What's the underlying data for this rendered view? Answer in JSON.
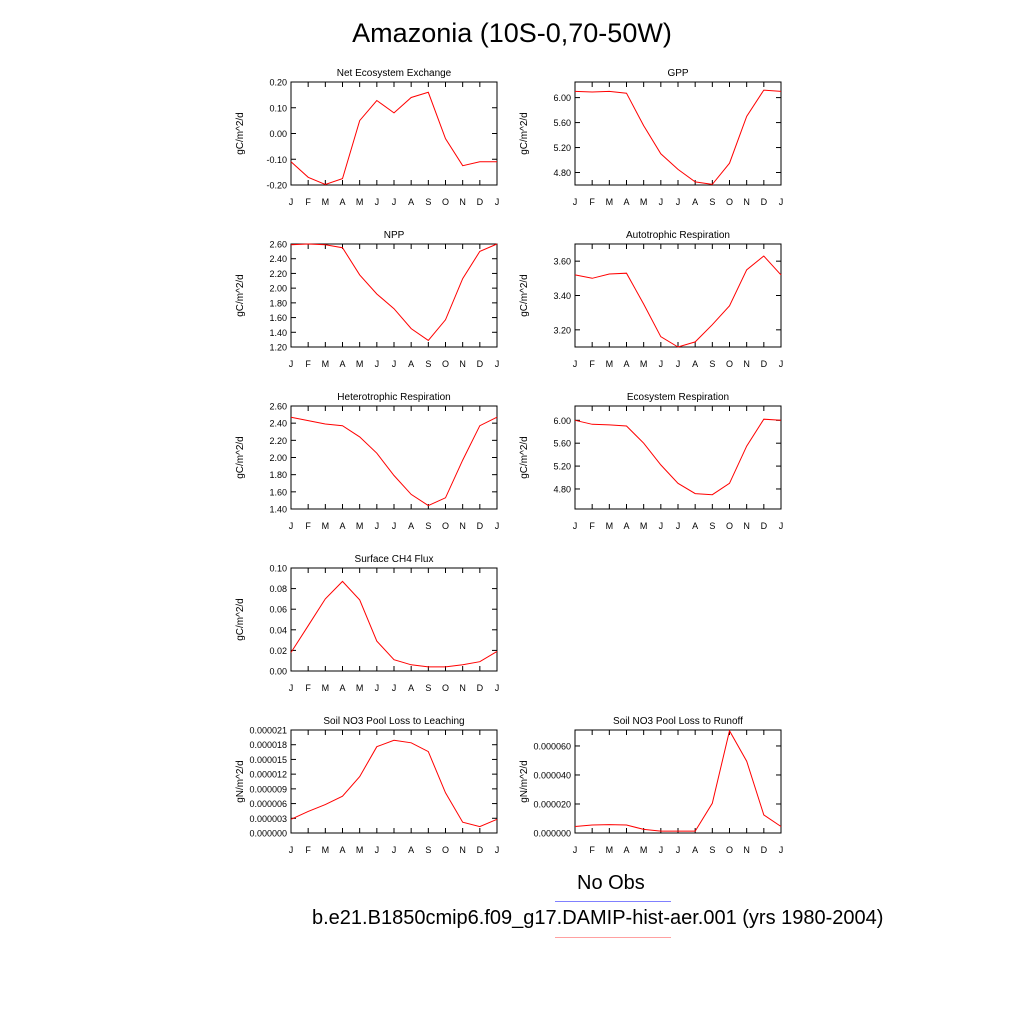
{
  "title": "Amazonia (10S-0,70-50W)",
  "months": [
    "J",
    "F",
    "M",
    "A",
    "M",
    "J",
    "J",
    "A",
    "S",
    "O",
    "N",
    "D",
    "J"
  ],
  "colors": {
    "model_line": "#ff0000",
    "obs_line": "#8080ff",
    "model_legend_line": "#ffa0a0"
  },
  "legend": {
    "obs_label": "No Obs",
    "model_label": "b.e21.B1850cmip6.f09_g17.DAMIP-hist-aer.001 (yrs 1980-2004)"
  },
  "chart_data": [
    {
      "type": "line",
      "title": "Net Ecosystem Exchange",
      "ylabel": "gC/m^2/d",
      "ylim": [
        -0.2,
        0.2
      ],
      "yticks": [
        "-0.20",
        "-0.10",
        "0.00",
        "0.10",
        "0.20"
      ],
      "yticks_values": [
        -0.2,
        -0.1,
        0.0,
        0.1,
        0.2
      ],
      "series": [
        {
          "values": [
            -0.11,
            -0.17,
            -0.198,
            -0.175,
            0.05,
            0.128,
            0.08,
            0.14,
            0.16,
            -0.02,
            -0.125,
            -0.11,
            -0.11
          ]
        }
      ]
    },
    {
      "type": "line",
      "title": "GPP",
      "ylabel": "gC/m^2/d",
      "ylim": [
        4.6,
        6.25
      ],
      "yticks": [
        "4.80",
        "5.20",
        "5.60",
        "6.00"
      ],
      "yticks_values": [
        4.8,
        5.2,
        5.6,
        6.0
      ],
      "series": [
        {
          "values": [
            6.1,
            6.09,
            6.1,
            6.07,
            5.55,
            5.1,
            4.85,
            4.65,
            4.61,
            4.95,
            5.7,
            6.12,
            6.1
          ]
        }
      ]
    },
    {
      "type": "line",
      "title": "NPP",
      "ylabel": "gC/m^2/d",
      "ylim": [
        1.2,
        2.6
      ],
      "yticks": [
        "1.20",
        "1.40",
        "1.60",
        "1.80",
        "2.00",
        "2.20",
        "2.40",
        "2.60"
      ],
      "yticks_values": [
        1.2,
        1.4,
        1.6,
        1.8,
        2.0,
        2.2,
        2.4,
        2.6
      ],
      "series": [
        {
          "values": [
            2.59,
            2.6,
            2.59,
            2.55,
            2.18,
            1.92,
            1.72,
            1.45,
            1.29,
            1.57,
            2.13,
            2.5,
            2.6
          ]
        }
      ]
    },
    {
      "type": "line",
      "title": "Autotrophic Respiration",
      "ylabel": "gC/m^2/d",
      "ylim": [
        3.1,
        3.7
      ],
      "yticks": [
        "3.20",
        "3.40",
        "3.60"
      ],
      "yticks_values": [
        3.2,
        3.4,
        3.6
      ],
      "series": [
        {
          "values": [
            3.52,
            3.5,
            3.525,
            3.53,
            3.35,
            3.16,
            3.1,
            3.13,
            3.23,
            3.34,
            3.55,
            3.63,
            3.52
          ]
        }
      ]
    },
    {
      "type": "line",
      "title": "Heterotrophic Respiration",
      "ylabel": "gC/m^2/d",
      "ylim": [
        1.4,
        2.6
      ],
      "yticks": [
        "1.40",
        "1.60",
        "1.80",
        "2.00",
        "2.20",
        "2.40",
        "2.60"
      ],
      "yticks_values": [
        1.4,
        1.6,
        1.8,
        2.0,
        2.2,
        2.4,
        2.6
      ],
      "series": [
        {
          "values": [
            2.47,
            2.43,
            2.39,
            2.37,
            2.24,
            2.05,
            1.79,
            1.57,
            1.44,
            1.53,
            1.97,
            2.37,
            2.47
          ]
        }
      ]
    },
    {
      "type": "line",
      "title": "Ecosystem Respiration",
      "ylabel": "gC/m^2/d",
      "ylim": [
        4.45,
        6.25
      ],
      "yticks": [
        "4.80",
        "5.20",
        "5.60",
        "6.00"
      ],
      "yticks_values": [
        4.8,
        5.2,
        5.6,
        6.0
      ],
      "series": [
        {
          "values": [
            6.0,
            5.93,
            5.92,
            5.9,
            5.6,
            5.22,
            4.9,
            4.72,
            4.7,
            4.9,
            5.55,
            6.02,
            6.0
          ]
        }
      ]
    },
    {
      "type": "line",
      "title": "Surface CH4 Flux",
      "ylabel": "gC/m^2/d",
      "ylim": [
        0.0,
        0.1
      ],
      "yticks": [
        "0.00",
        "0.02",
        "0.04",
        "0.06",
        "0.08",
        "0.10"
      ],
      "yticks_values": [
        0.0,
        0.02,
        0.04,
        0.06,
        0.08,
        0.1
      ],
      "series": [
        {
          "values": [
            0.018,
            0.044,
            0.07,
            0.087,
            0.069,
            0.029,
            0.011,
            0.006,
            0.004,
            0.004,
            0.006,
            0.009,
            0.019
          ]
        }
      ]
    },
    {
      "type": "line",
      "title": "Soil NO3 Pool Loss to Leaching",
      "ylabel": "gN/m^2/d",
      "ylim": [
        0.0,
        2.1e-05
      ],
      "yticks": [
        "0.000000",
        "0.000003",
        "0.000006",
        "0.000009",
        "0.000012",
        "0.000015",
        "0.000018",
        "0.000021"
      ],
      "yticks_values": [
        0.0,
        3e-06,
        6e-06,
        9e-06,
        1.2e-05,
        1.5e-05,
        1.8e-05,
        2.1e-05
      ],
      "series": [
        {
          "values": [
            2.8e-06,
            4.4e-06,
            5.8e-06,
            7.5e-06,
            1.15e-05,
            1.76e-05,
            1.89e-05,
            1.84e-05,
            1.66e-05,
            8.2e-06,
            2.2e-06,
            1.3e-06,
            2.8e-06
          ]
        }
      ]
    },
    {
      "type": "line",
      "title": "Soil NO3 Pool Loss to Runoff",
      "ylabel": "gN/m^2/d",
      "ylim": [
        0.0,
        7.1e-05
      ],
      "yticks": [
        "0.000000",
        "0.000020",
        "0.000040",
        "0.000060"
      ],
      "yticks_values": [
        0.0,
        2e-05,
        4e-05,
        6e-05
      ],
      "series": [
        {
          "values": [
            4.5e-06,
            5.5e-06,
            5.8e-06,
            5.5e-06,
            2.5e-06,
            1.3e-06,
            1.3e-06,
            1.3e-06,
            2.05e-05,
            7.05e-05,
            4.95e-05,
            1.25e-05,
            4.5e-06
          ]
        }
      ]
    }
  ]
}
